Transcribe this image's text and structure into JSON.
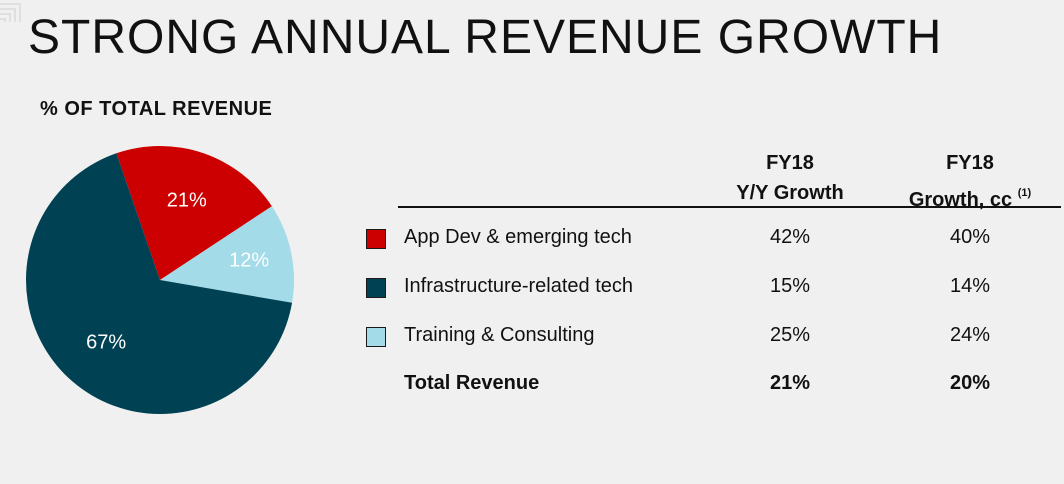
{
  "title": "STRONG ANNUAL REVENUE GROWTH",
  "chart_data": [
    {
      "type": "pie",
      "title": "% OF TOTAL REVENUE",
      "slices": [
        {
          "label": "21%",
          "value": 21,
          "color": "#cc0000",
          "label_color": "#ffffff"
        },
        {
          "label": "12%",
          "value": 12,
          "color": "#a3dbe8",
          "label_color": "#ffffff"
        },
        {
          "label": "67%",
          "value": 67,
          "color": "#004153",
          "label_color": "#ffffff"
        }
      ]
    },
    {
      "type": "table",
      "columns": [
        {
          "line1": "FY18",
          "line2": "Y/Y Growth",
          "sup": ""
        },
        {
          "line1": "FY18",
          "line2": "Growth, cc",
          "sup": "(1)"
        }
      ],
      "rows": [
        {
          "label": "App Dev & emerging tech",
          "swatch": "#cc0000",
          "values": [
            "42%",
            "40%"
          ]
        },
        {
          "label": "Infrastructure-related tech",
          "swatch": "#004153",
          "values": [
            "15%",
            "14%"
          ]
        },
        {
          "label": "Training & Consulting",
          "swatch": "#a3dbe8",
          "values": [
            "25%",
            "24%"
          ]
        },
        {
          "label": "Total Revenue",
          "swatch": null,
          "values": [
            "21%",
            "20%"
          ]
        }
      ]
    }
  ]
}
